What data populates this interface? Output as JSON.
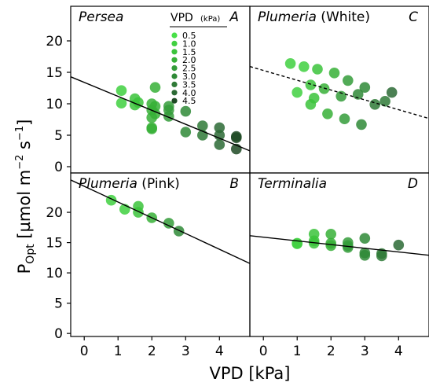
{
  "colors": {
    "vpd_0.5": "#48e048",
    "vpd_1.0": "#40d040",
    "vpd_1.5": "#3bc33b",
    "vpd_2.0": "#37b037",
    "vpd_2.5": "#349c39",
    "vpd_3.0": "#2f8a37",
    "vpd_3.5": "#2f7a37",
    "vpd_4.0": "#2c6a35",
    "vpd_4.5": "#1f4a25"
  },
  "chart_data": {
    "type": "scatter",
    "xlabel": "VPD [kPa]",
    "ylabel_main": "P",
    "ylabel_sub": "Opt",
    "ylabel_rest": " [µmol m",
    "ylabel_exp1": "−2",
    "ylabel_mid": " s",
    "ylabel_exp2": "−1",
    "ylabel_end": "]",
    "x_ticks": [
      "0",
      "1",
      "2",
      "3",
      "4"
    ],
    "legend": {
      "title": "VPD",
      "unit": "(kPa)",
      "entries": [
        {
          "label": "0.5",
          "color": "#48e048"
        },
        {
          "label": "1.0",
          "color": "#40d040"
        },
        {
          "label": "1.5",
          "color": "#3bc33b"
        },
        {
          "label": "2.0",
          "color": "#37b037"
        },
        {
          "label": "2.5",
          "color": "#349c39"
        },
        {
          "label": "3.0",
          "color": "#2f8a37"
        },
        {
          "label": "3.5",
          "color": "#2f7a37"
        },
        {
          "label": "4.0",
          "color": "#2c6a35"
        },
        {
          "label": "4.5",
          "color": "#1f4a25"
        }
      ]
    },
    "panels": [
      {
        "id": "A",
        "title_italic": "Persea",
        "title_plain": "",
        "letter": "A",
        "xlim": [
          -0.4,
          4.9
        ],
        "ylim": [
          -1,
          25.5
        ],
        "y_ticks": [
          "0",
          "5",
          "10",
          "15",
          "20"
        ],
        "fit": {
          "slope": -2.22,
          "intercept": 13.4,
          "style": "solid"
        },
        "points": [
          {
            "x": 1.1,
            "y": 12.1
          },
          {
            "x": 1.1,
            "y": 10.1
          },
          {
            "x": 1.5,
            "y": 10.8
          },
          {
            "x": 1.5,
            "y": 9.8
          },
          {
            "x": 1.6,
            "y": 10.2
          },
          {
            "x": 2.0,
            "y": 10.0
          },
          {
            "x": 2.0,
            "y": 9.0
          },
          {
            "x": 2.0,
            "y": 7.8
          },
          {
            "x": 2.0,
            "y": 6.2
          },
          {
            "x": 2.0,
            "y": 6.0
          },
          {
            "x": 2.1,
            "y": 12.6
          },
          {
            "x": 2.1,
            "y": 9.6
          },
          {
            "x": 2.1,
            "y": 8.4
          },
          {
            "x": 2.5,
            "y": 9.6
          },
          {
            "x": 2.5,
            "y": 9.0
          },
          {
            "x": 2.5,
            "y": 8.0
          },
          {
            "x": 3.0,
            "y": 8.8
          },
          {
            "x": 3.0,
            "y": 5.5
          },
          {
            "x": 3.5,
            "y": 6.5
          },
          {
            "x": 3.5,
            "y": 5.0
          },
          {
            "x": 4.0,
            "y": 6.2
          },
          {
            "x": 4.0,
            "y": 5.0
          },
          {
            "x": 4.0,
            "y": 3.5
          },
          {
            "x": 4.5,
            "y": 4.8
          },
          {
            "x": 4.5,
            "y": 4.6
          },
          {
            "x": 4.5,
            "y": 2.8
          }
        ]
      },
      {
        "id": "C",
        "title_italic": "Plumeria",
        "title_plain": " (White)",
        "letter": "C",
        "xlim": [
          -0.4,
          4.9
        ],
        "ylim": [
          -1,
          25.5
        ],
        "y_ticks": [],
        "fit": {
          "slope": -1.56,
          "intercept": 15.3,
          "style": "dashed"
        },
        "points": [
          {
            "x": 0.8,
            "y": 16.4
          },
          {
            "x": 1.0,
            "y": 11.8
          },
          {
            "x": 1.2,
            "y": 15.9
          },
          {
            "x": 1.4,
            "y": 13.0
          },
          {
            "x": 1.4,
            "y": 9.9
          },
          {
            "x": 1.5,
            "y": 10.9
          },
          {
            "x": 1.6,
            "y": 15.5
          },
          {
            "x": 1.8,
            "y": 12.4
          },
          {
            "x": 1.9,
            "y": 8.4
          },
          {
            "x": 2.1,
            "y": 14.9
          },
          {
            "x": 2.3,
            "y": 11.2
          },
          {
            "x": 2.4,
            "y": 7.6
          },
          {
            "x": 2.5,
            "y": 13.7
          },
          {
            "x": 2.8,
            "y": 11.5
          },
          {
            "x": 2.9,
            "y": 6.7
          },
          {
            "x": 3.0,
            "y": 12.6
          },
          {
            "x": 3.3,
            "y": 9.9
          },
          {
            "x": 3.6,
            "y": 10.4
          },
          {
            "x": 3.8,
            "y": 11.8
          }
        ]
      },
      {
        "id": "B",
        "title_italic": "Plumeria",
        "title_plain": " (Pink)",
        "letter": "B",
        "xlim": [
          -0.4,
          4.9
        ],
        "ylim": [
          -0.5,
          26.5
        ],
        "y_ticks": [
          "0",
          "5",
          "10",
          "15",
          "20"
        ],
        "fit": {
          "slope": -2.6,
          "intercept": 24.3,
          "style": "solid"
        },
        "points": [
          {
            "x": 0.8,
            "y": 22.0
          },
          {
            "x": 1.2,
            "y": 20.5
          },
          {
            "x": 1.6,
            "y": 21.0
          },
          {
            "x": 1.6,
            "y": 20.0
          },
          {
            "x": 2.0,
            "y": 19.1
          },
          {
            "x": 2.5,
            "y": 18.2
          },
          {
            "x": 2.8,
            "y": 16.9
          }
        ]
      },
      {
        "id": "D",
        "title_italic": "Terminalia",
        "title_plain": "",
        "letter": "D",
        "xlim": [
          -0.4,
          4.9
        ],
        "ylim": [
          -0.5,
          26.5
        ],
        "y_ticks": [],
        "fit": {
          "slope": -0.61,
          "intercept": 15.9,
          "style": "solid"
        },
        "points": [
          {
            "x": 1.0,
            "y": 14.9
          },
          {
            "x": 1.0,
            "y": 14.8
          },
          {
            "x": 1.5,
            "y": 16.4
          },
          {
            "x": 1.5,
            "y": 15.3
          },
          {
            "x": 1.5,
            "y": 14.9
          },
          {
            "x": 2.0,
            "y": 16.4
          },
          {
            "x": 2.0,
            "y": 14.9
          },
          {
            "x": 2.0,
            "y": 14.5
          },
          {
            "x": 2.5,
            "y": 15.0
          },
          {
            "x": 2.5,
            "y": 14.5
          },
          {
            "x": 2.5,
            "y": 14.2
          },
          {
            "x": 3.0,
            "y": 15.7
          },
          {
            "x": 3.0,
            "y": 13.3
          },
          {
            "x": 3.0,
            "y": 12.9
          },
          {
            "x": 3.5,
            "y": 13.2
          },
          {
            "x": 3.5,
            "y": 12.8
          },
          {
            "x": 4.0,
            "y": 14.6
          }
        ]
      }
    ]
  }
}
